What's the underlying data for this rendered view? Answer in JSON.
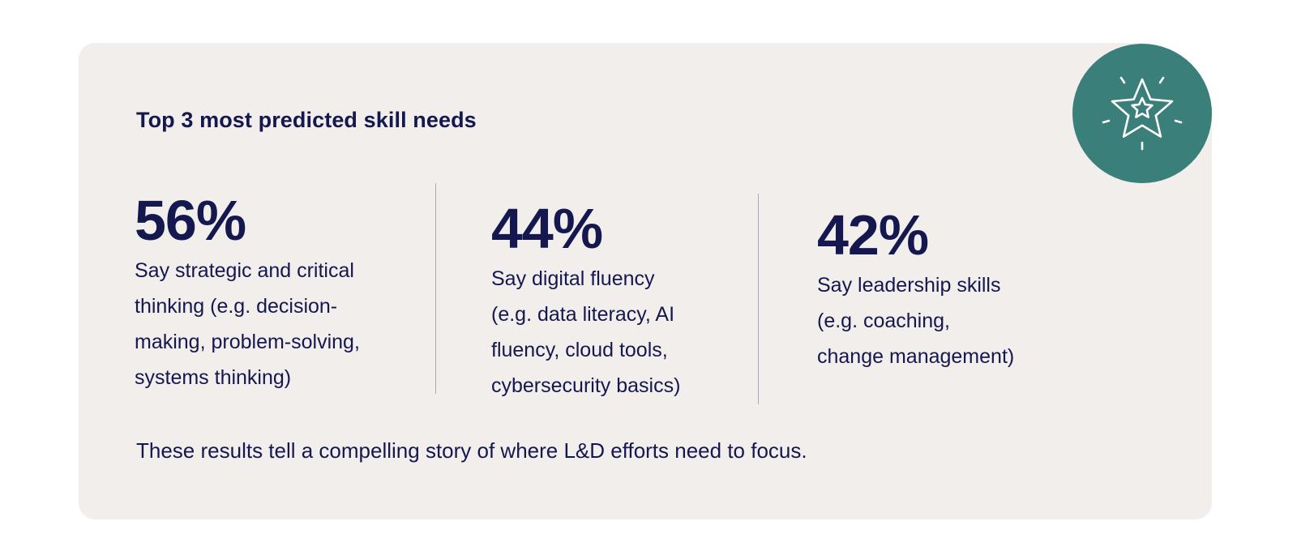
{
  "card": {
    "title": "Top 3 most predicted skill needs",
    "stats": [
      {
        "value": "56%",
        "description": "Say strategic and critical\nthinking (e.g. decision-\nmaking, problem-solving,\nsystems thinking)"
      },
      {
        "value": "44%",
        "description": "Say digital fluency\n(e.g. data literacy, AI\nfluency, cloud tools,\ncybersecurity basics)"
      },
      {
        "value": "42%",
        "description": "Say leadership skills\n(e.g. coaching,\nchange management)"
      }
    ],
    "footer": "These results tell a compelling story of where L&D efforts need to focus."
  },
  "badge": {
    "icon": "star-icon"
  },
  "colors": {
    "card_background": "#f2eeec",
    "text": "#14184f",
    "badge_background": "#3a7f79",
    "divider": "#a8a8b6"
  }
}
